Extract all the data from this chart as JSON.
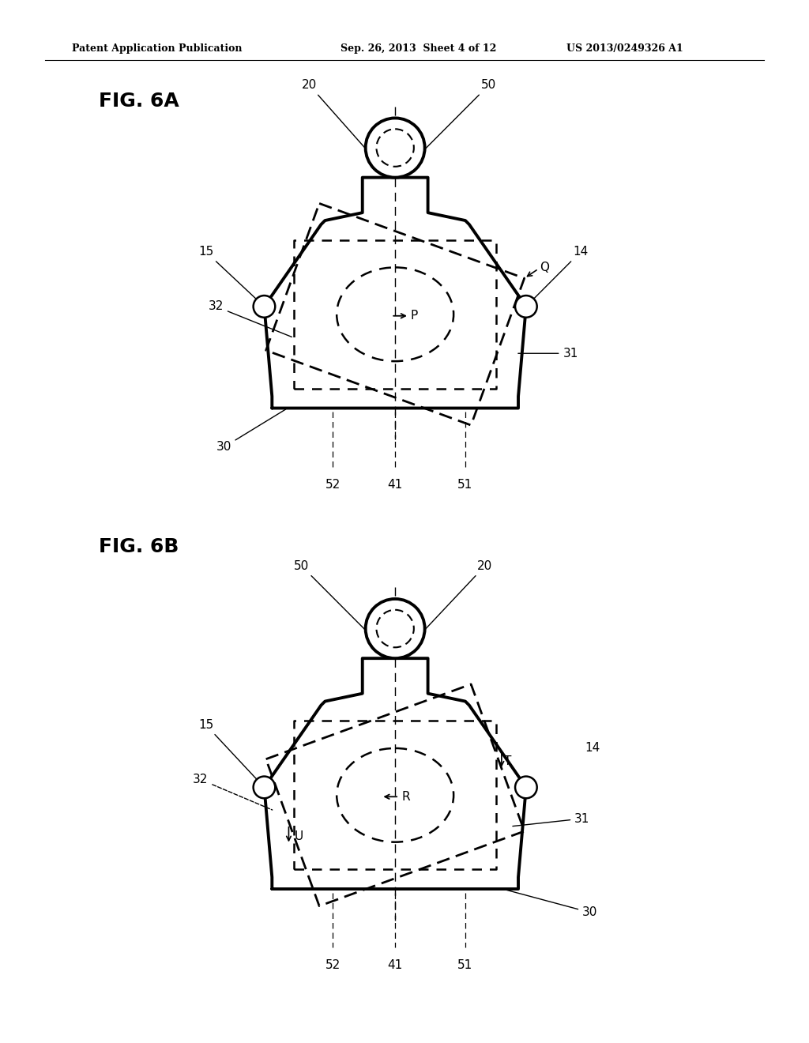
{
  "header_left": "Patent Application Publication",
  "header_mid": "Sep. 26, 2013  Sheet 4 of 12",
  "header_right": "US 2013/0249326 A1",
  "fig_a_title": "FIG. 6A",
  "fig_b_title": "FIG. 6B",
  "bg_color": "#ffffff",
  "line_color": "#000000"
}
